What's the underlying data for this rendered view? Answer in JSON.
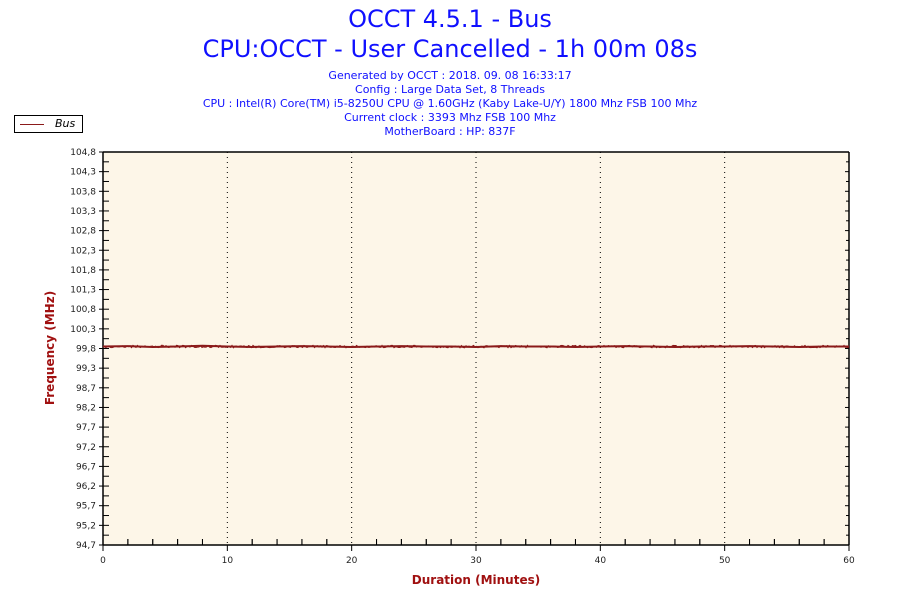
{
  "chart_data": {
    "type": "line",
    "title": "OCCT 4.5.1 - Bus",
    "subtitle": "CPU:OCCT - User Cancelled - 1h 00m 08s",
    "info_lines": [
      "Generated by OCCT : 2018. 09. 08 16:33:17",
      "Config : Large Data Set, 8 Threads",
      "CPU : Intel(R) Core(TM) i5-8250U CPU @ 1.60GHz (Kaby Lake-U/Y) 1800 Mhz FSB 100 Mhz",
      "Current clock : 3393 Mhz FSB 100 Mhz",
      "MotherBoard : HP: 837F"
    ],
    "xlabel": "Duration (Minutes)",
    "ylabel": "Frequency (MHz)",
    "xlim": [
      0,
      60
    ],
    "ylim": [
      94.7,
      104.8
    ],
    "x_ticks": [
      "0",
      "10",
      "20",
      "30",
      "40",
      "50",
      "60"
    ],
    "y_ticks": [
      "94,7",
      "95,2",
      "95,7",
      "96,2",
      "96,7",
      "97,2",
      "97,7",
      "98,2",
      "98,7",
      "99,3",
      "99,8",
      "100,3",
      "100,8",
      "101,3",
      "101,8",
      "102,3",
      "102,8",
      "103,3",
      "103,8",
      "104,3",
      "104,8"
    ],
    "grid": "vertical dotted",
    "legend": "top-left",
    "background": "#fdf6e8",
    "series": [
      {
        "name": "Bus",
        "color": "#8b1a1a",
        "x": [
          0,
          2,
          4,
          6,
          8,
          10,
          12,
          14,
          16,
          18,
          20,
          22,
          24,
          26,
          28,
          30,
          32,
          34,
          36,
          38,
          40,
          42,
          44,
          46,
          48,
          50,
          52,
          54,
          56,
          58,
          60
        ],
        "values": [
          99.8,
          99.81,
          99.79,
          99.8,
          99.82,
          99.8,
          99.79,
          99.8,
          99.81,
          99.8,
          99.79,
          99.8,
          99.81,
          99.8,
          99.8,
          99.79,
          99.81,
          99.8,
          99.8,
          99.79,
          99.8,
          99.81,
          99.8,
          99.79,
          99.8,
          99.8,
          99.81,
          99.8,
          99.79,
          99.8,
          99.8
        ]
      }
    ]
  }
}
